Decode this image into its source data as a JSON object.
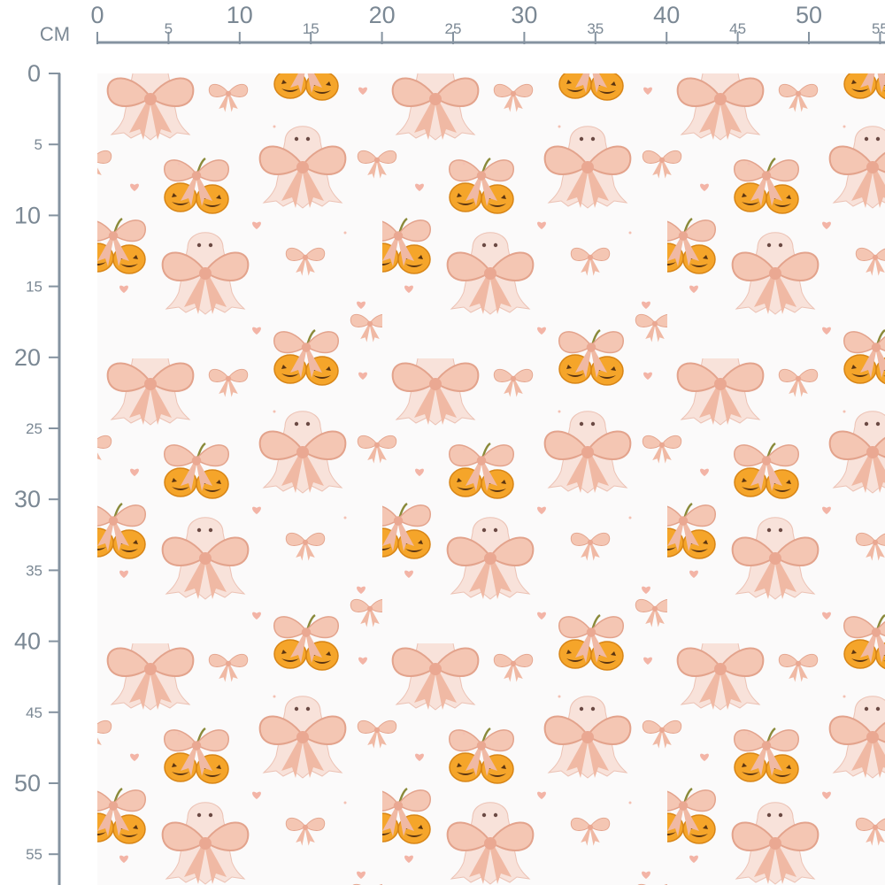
{
  "ruler": {
    "unit": "CM",
    "top": [
      0,
      5,
      10,
      15,
      20,
      25,
      30,
      35,
      40,
      45,
      50,
      55
    ],
    "left": [
      0,
      5,
      10,
      15,
      20,
      25,
      30,
      35,
      40,
      45,
      50,
      55
    ]
  }
}
